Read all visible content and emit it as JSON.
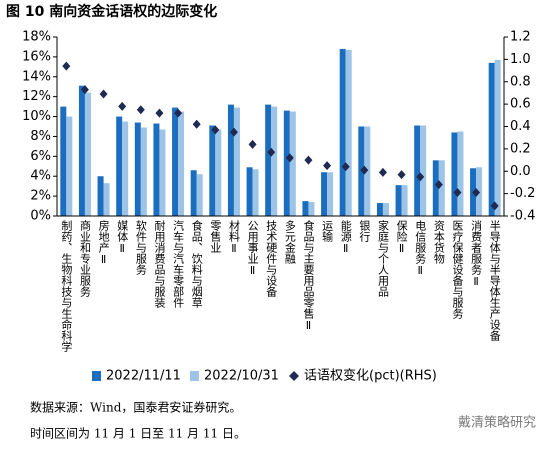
{
  "chart_data": {
    "type": "bar-line",
    "title": "图 10 南向资金话语权的边际变化",
    "categories": [
      "制药、生物科技与生命科学",
      "商业和专业服务",
      "房地产Ⅱ",
      "媒体Ⅱ",
      "软件与服务",
      "耐用消费品与服装",
      "汽车与汽车零部件",
      "食品、饮料与烟草",
      "零售业",
      "材料Ⅱ",
      "公用事业Ⅱ",
      "技术硬件与设备",
      "多元金融",
      "食品与主要用品零售Ⅱ",
      "运输",
      "能源Ⅱ",
      "银行",
      "家庭与个人用品",
      "保险Ⅱ",
      "电信服务Ⅱ",
      "资本货物",
      "医疗保健设备与服务",
      "消费者服务Ⅱ",
      "半导体与半导体生产设备"
    ],
    "series": [
      {
        "name": "2022/11/11",
        "type": "bar",
        "color": "#1b6ebf",
        "values": [
          11.0,
          13.1,
          4.0,
          10.0,
          9.4,
          9.3,
          10.9,
          4.6,
          9.1,
          11.2,
          4.9,
          11.2,
          10.6,
          1.5,
          4.4,
          16.8,
          9.0,
          1.3,
          3.1,
          9.1,
          5.6,
          8.4,
          4.8,
          15.4
        ]
      },
      {
        "name": "2022/10/31",
        "type": "bar",
        "color": "#9dc3e6",
        "values": [
          10.0,
          12.4,
          3.3,
          9.5,
          8.9,
          8.7,
          10.5,
          4.2,
          8.7,
          10.9,
          4.7,
          11.0,
          10.5,
          1.4,
          4.4,
          16.7,
          9.0,
          1.3,
          3.1,
          9.1,
          5.6,
          8.5,
          4.9,
          15.7
        ]
      },
      {
        "name": "话语权变化(pct)(RHS)",
        "type": "scatter",
        "axis": "y2",
        "color": "#1f2a52",
        "values": [
          0.94,
          0.73,
          0.69,
          0.58,
          0.55,
          0.52,
          0.52,
          0.42,
          0.37,
          0.35,
          0.24,
          0.17,
          0.12,
          0.1,
          0.05,
          0.04,
          0.01,
          -0.01,
          -0.03,
          -0.05,
          -0.12,
          -0.19,
          -0.19,
          -0.31
        ]
      }
    ],
    "ylim": [
      0,
      18
    ],
    "yticks": [
      {
        "value": 0,
        "label": "0%"
      },
      {
        "value": 2,
        "label": "2%"
      },
      {
        "value": 4,
        "label": "4%"
      },
      {
        "value": 6,
        "label": "6%"
      },
      {
        "value": 8,
        "label": "8%"
      },
      {
        "value": 10,
        "label": "10%"
      },
      {
        "value": 12,
        "label": "12%"
      },
      {
        "value": 14,
        "label": "14%"
      },
      {
        "value": 16,
        "label": "16%"
      },
      {
        "value": 18,
        "label": "18%"
      }
    ],
    "y2lim": [
      -0.4,
      1.2
    ],
    "y2ticks": [
      -0.4,
      -0.2,
      {
        "value": 0,
        "label": "0.0"
      },
      0.2,
      0.4,
      0.6,
      0.8,
      {
        "value": 1,
        "label": "1.0"
      },
      1.2
    ],
    "source": "数据来源：Wind，国泰君安证券研究。",
    "note": "时间区间为 11 月 1 日至 11 月 11 日。",
    "watermark": "戴清策略研究"
  }
}
